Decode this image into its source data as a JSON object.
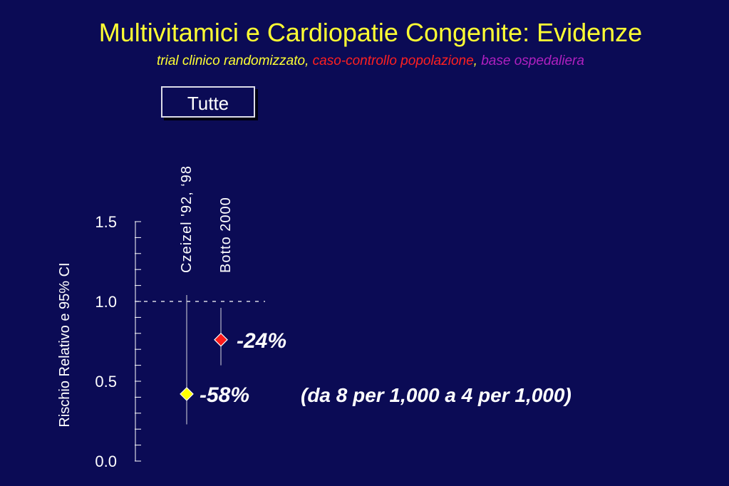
{
  "header": {
    "title": "Multivitamici e Cardiopatie Congenite: Evidenze",
    "subtitle_parts": {
      "trial": "trial clinico randomizzato",
      "sep1": ", ",
      "case_control": "caso-controllo popolazione",
      "sep2": ", ",
      "hospital": "base ospedaliera"
    }
  },
  "box_label": "Tutte",
  "colors": {
    "background": "#0b0b55",
    "trial": "#ffff33",
    "case_control": "#ff2020",
    "hospital": "#b020c0"
  },
  "chart_data": {
    "type": "scatter",
    "ylabel": "Rischio Relativo e 95% CI",
    "ylim": [
      0,
      1.5
    ],
    "y_ticks": [
      {
        "value": 0.0,
        "label": "0.0"
      },
      {
        "value": 0.5,
        "label": "0.5"
      },
      {
        "value": 1.0,
        "label": "1.0"
      },
      {
        "value": 1.5,
        "label": "1.5"
      }
    ],
    "minor_tick_step": 0.1,
    "reference_line": 1.0,
    "studies": [
      {
        "label": "Czeizel '92, ‘98",
        "rr": 0.42,
        "ci_low": 0.23,
        "ci_high": 1.04,
        "marker_color": "#ffff00",
        "annotation": "-58%"
      },
      {
        "label": "Botto  2000",
        "rr": 0.76,
        "ci_low": 0.6,
        "ci_high": 0.96,
        "marker_color": "#ff1a1a",
        "annotation": "-24%"
      }
    ],
    "note": "(da 8 per 1,000 a 4 per 1,000)"
  }
}
